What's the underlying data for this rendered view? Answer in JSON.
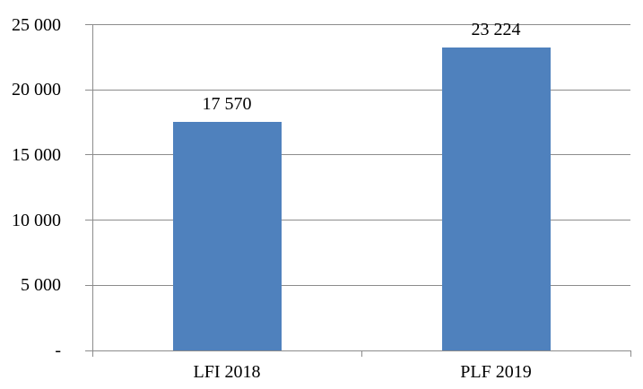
{
  "chart_data": {
    "type": "bar",
    "title": "",
    "categories": [
      "LFI 2018",
      "PLF 2019"
    ],
    "values": [
      17570,
      23224
    ],
    "value_labels": [
      "17 570",
      "23 224"
    ],
    "ylim": [
      0,
      25000
    ],
    "ytick_interval": 5000,
    "yticks": [
      0,
      5000,
      10000,
      15000,
      20000,
      25000
    ],
    "ytick_labels": [
      "-",
      "5 000",
      "10 000",
      "15 000",
      "20 000",
      "25 000"
    ],
    "grid": true,
    "legend": "none",
    "colors": {
      "bar": "#4F81BD",
      "gridline": "#8C8C8C",
      "axis": "#8C8C8C",
      "text": "#000000",
      "background": "#FFFFFF"
    }
  }
}
